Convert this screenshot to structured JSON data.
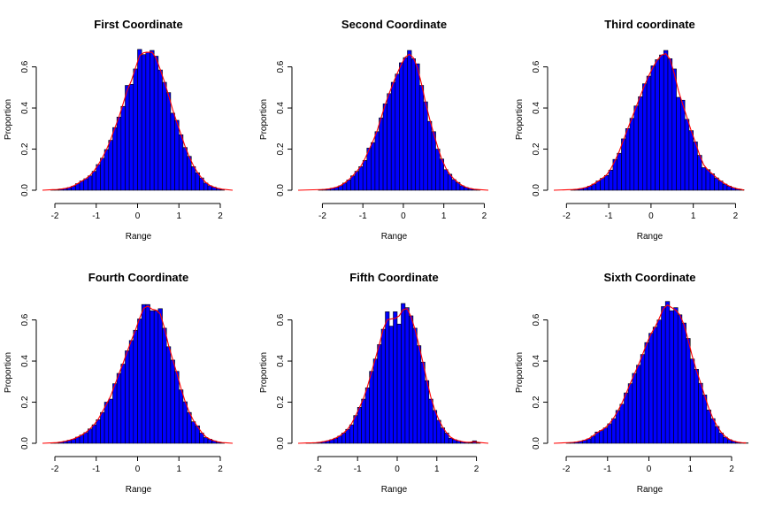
{
  "chart_data": [
    {
      "type": "bar",
      "title": "First Coordinate",
      "xlabel": "Range",
      "ylabel": "Proportion",
      "xticks": [
        -2,
        -1,
        0,
        1,
        2
      ],
      "yticks": [
        0.0,
        0.2,
        0.4,
        0.6
      ],
      "xticklabels": [
        "-2",
        "-1",
        "0",
        "1",
        "2"
      ],
      "yticklabels": [
        "0.0",
        "0.2",
        "0.4",
        "0.6"
      ],
      "xlim": [
        -2.3,
        2.3
      ],
      "ylim": [
        0,
        0.68
      ],
      "bar_color": "#0000FF",
      "curve_color": "#FF0000",
      "bin_width": 0.1,
      "bin_start": -2.1,
      "values": [
        0.003,
        0.003,
        0.006,
        0.008,
        0.013,
        0.02,
        0.032,
        0.045,
        0.056,
        0.07,
        0.092,
        0.125,
        0.156,
        0.198,
        0.243,
        0.305,
        0.356,
        0.408,
        0.51,
        0.515,
        0.59,
        0.685,
        0.66,
        0.672,
        0.68,
        0.652,
        0.585,
        0.525,
        0.475,
        0.375,
        0.34,
        0.27,
        0.208,
        0.165,
        0.115,
        0.085,
        0.06,
        0.035,
        0.022,
        0.015,
        0.008,
        0.004
      ]
    },
    {
      "type": "bar",
      "title": "Second Coordinate",
      "xlabel": "Range",
      "ylabel": "Proportion",
      "xticks": [
        -2,
        -1,
        0,
        1,
        2
      ],
      "yticks": [
        0.0,
        0.2,
        0.4,
        0.6
      ],
      "xticklabels": [
        "-2",
        "-1",
        "0",
        "1",
        "2"
      ],
      "yticklabels": [
        "0.0",
        "0.2",
        "0.4",
        "0.6"
      ],
      "xlim": [
        -2.6,
        2.1
      ],
      "ylim": [
        0,
        0.68
      ],
      "bar_color": "#0000FF",
      "curve_color": "#FF0000",
      "bin_width": 0.1,
      "bin_start": -2.1,
      "values": [
        0.003,
        0.004,
        0.006,
        0.01,
        0.014,
        0.022,
        0.035,
        0.05,
        0.07,
        0.092,
        0.115,
        0.145,
        0.205,
        0.232,
        0.285,
        0.352,
        0.42,
        0.47,
        0.525,
        0.565,
        0.62,
        0.645,
        0.68,
        0.64,
        0.615,
        0.51,
        0.43,
        0.335,
        0.285,
        0.2,
        0.152,
        0.1,
        0.078,
        0.052,
        0.038,
        0.022,
        0.014,
        0.008,
        0.005,
        0.003
      ]
    },
    {
      "type": "bar",
      "title": "Third coordinate",
      "xlabel": "Range",
      "ylabel": "Proportion",
      "xticks": [
        -2,
        -1,
        0,
        1,
        2
      ],
      "yticks": [
        0.0,
        0.2,
        0.4,
        0.6
      ],
      "xticklabels": [
        "-2",
        "-1",
        "0",
        "1",
        "2"
      ],
      "yticklabels": [
        "0.0",
        "0.2",
        "0.4",
        "0.6"
      ],
      "xlim": [
        -2.3,
        2.2
      ],
      "ylim": [
        0,
        0.68
      ],
      "bar_color": "#0000FF",
      "curve_color": "#FF0000",
      "bin_width": 0.1,
      "bin_start": -1.9,
      "values": [
        0.003,
        0.005,
        0.008,
        0.012,
        0.02,
        0.03,
        0.045,
        0.058,
        0.072,
        0.098,
        0.15,
        0.18,
        0.25,
        0.3,
        0.35,
        0.41,
        0.455,
        0.518,
        0.555,
        0.605,
        0.635,
        0.658,
        0.68,
        0.64,
        0.59,
        0.452,
        0.438,
        0.345,
        0.29,
        0.235,
        0.17,
        0.11,
        0.1,
        0.08,
        0.06,
        0.045,
        0.03,
        0.02,
        0.012,
        0.006,
        0.003
      ]
    },
    {
      "type": "bar",
      "title": "Fourth Coordinate",
      "xlabel": "Range",
      "ylabel": "Proportion",
      "xticks": [
        -2,
        -1,
        0,
        1,
        2
      ],
      "yticks": [
        0.0,
        0.2,
        0.4,
        0.6
      ],
      "xticklabels": [
        "-2",
        "-1",
        "0",
        "1",
        "2"
      ],
      "yticklabels": [
        "0.0",
        "0.2",
        "0.4",
        "0.6"
      ],
      "xlim": [
        -2.3,
        2.3
      ],
      "ylim": [
        0,
        0.68
      ],
      "bar_color": "#0000FF",
      "curve_color": "#FF0000",
      "bin_width": 0.1,
      "bin_start": -2.1,
      "values": [
        0.002,
        0.003,
        0.006,
        0.01,
        0.015,
        0.02,
        0.03,
        0.04,
        0.052,
        0.07,
        0.09,
        0.115,
        0.15,
        0.2,
        0.215,
        0.29,
        0.34,
        0.385,
        0.45,
        0.5,
        0.55,
        0.605,
        0.675,
        0.675,
        0.645,
        0.645,
        0.655,
        0.56,
        0.47,
        0.405,
        0.35,
        0.26,
        0.202,
        0.15,
        0.105,
        0.085,
        0.05,
        0.028,
        0.02,
        0.012,
        0.006,
        0.003
      ]
    },
    {
      "type": "bar",
      "title": "Fifth Coordinate",
      "xlabel": "Range",
      "ylabel": "Proportion",
      "xticks": [
        -2,
        -1,
        0,
        1,
        2
      ],
      "yticks": [
        0.0,
        0.2,
        0.4,
        0.6
      ],
      "xticklabels": [
        "-2",
        "-1",
        "0",
        "1",
        "2"
      ],
      "yticklabels": [
        "0.0",
        "0.2",
        "0.4",
        "0.6"
      ],
      "xlim": [
        -2.5,
        2.3
      ],
      "ylim": [
        0,
        0.68
      ],
      "bar_color": "#0000FF",
      "curve_color": "#FF0000",
      "bin_width": 0.1,
      "bin_start": -2.3,
      "values": [
        0.002,
        0.002,
        0.003,
        0.005,
        0.008,
        0.012,
        0.018,
        0.025,
        0.035,
        0.05,
        0.068,
        0.09,
        0.135,
        0.175,
        0.215,
        0.27,
        0.35,
        0.41,
        0.48,
        0.555,
        0.64,
        0.57,
        0.64,
        0.58,
        0.68,
        0.66,
        0.62,
        0.56,
        0.475,
        0.395,
        0.305,
        0.215,
        0.16,
        0.112,
        0.075,
        0.05,
        0.025,
        0.018,
        0.012,
        0.007,
        0.005,
        0.003,
        0.012,
        0.002
      ]
    },
    {
      "type": "bar",
      "title": "Sixth Coordinate",
      "xlabel": "Range",
      "ylabel": "Proportion",
      "xticks": [
        -2,
        -1,
        0,
        1,
        2
      ],
      "yticks": [
        0.0,
        0.2,
        0.4,
        0.6
      ],
      "xticklabels": [
        "-2",
        "-1",
        "0",
        "1",
        "2"
      ],
      "yticklabels": [
        "0.0",
        "0.2",
        "0.4",
        "0.6"
      ],
      "xlim": [
        -2.3,
        2.3
      ],
      "ylim": [
        0,
        0.68
      ],
      "bar_color": "#0000FF",
      "curve_color": "#FF0000",
      "bin_width": 0.1,
      "bin_start": -2.0,
      "values": [
        0.003,
        0.004,
        0.006,
        0.01,
        0.015,
        0.022,
        0.035,
        0.055,
        0.062,
        0.075,
        0.095,
        0.12,
        0.16,
        0.19,
        0.245,
        0.29,
        0.34,
        0.38,
        0.432,
        0.49,
        0.535,
        0.565,
        0.6,
        0.665,
        0.69,
        0.645,
        0.66,
        0.625,
        0.585,
        0.51,
        0.41,
        0.36,
        0.292,
        0.235,
        0.162,
        0.12,
        0.082,
        0.05,
        0.03,
        0.018,
        0.01,
        0.005,
        0.003,
        0.002
      ]
    }
  ]
}
